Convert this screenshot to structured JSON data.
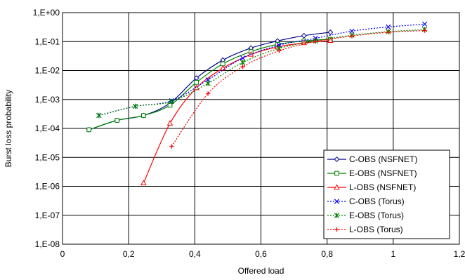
{
  "chart_data": {
    "type": "line",
    "xlabel": "Offered load",
    "ylabel": "Burst loss probability",
    "xlim": [
      0,
      1.2
    ],
    "y_scale": "log",
    "ylim_exponents": [
      -8,
      0
    ],
    "x_ticks": [
      "0",
      "0,2",
      "0,4",
      "0,6",
      "0,8",
      "1",
      "1,2"
    ],
    "y_ticks": [
      "1,E-08",
      "1,E-07",
      "1,E-06",
      "1,E-05",
      "1,E-04",
      "1,E-03",
      "1,E-02",
      "1,E-01",
      "1,E+00"
    ],
    "grid": true,
    "legend_position": "bottom-right",
    "series": [
      {
        "name": "C-OBS (NSFNET)",
        "color": "#00008B",
        "marker": "diamond",
        "dashed": false,
        "points": [
          [
            0.08,
            9e-05
          ],
          [
            0.165,
            0.00019
          ],
          [
            0.245,
            0.00028
          ],
          [
            0.325,
            0.00075
          ],
          [
            0.405,
            0.0055
          ],
          [
            0.485,
            0.023
          ],
          [
            0.57,
            0.06
          ],
          [
            0.65,
            0.105
          ],
          [
            0.73,
            0.16
          ],
          [
            0.81,
            0.21
          ]
        ]
      },
      {
        "name": "E-OBS (NSFNET)",
        "color": "#008000",
        "marker": "square",
        "dashed": false,
        "points": [
          [
            0.08,
            9e-05
          ],
          [
            0.165,
            0.00019
          ],
          [
            0.245,
            0.00028
          ],
          [
            0.325,
            0.00063
          ],
          [
            0.405,
            0.0039
          ],
          [
            0.485,
            0.017
          ],
          [
            0.57,
            0.045
          ],
          [
            0.65,
            0.08
          ],
          [
            0.73,
            0.105
          ],
          [
            0.81,
            0.12
          ]
        ]
      },
      {
        "name": "L-OBS (NSFNET)",
        "color": "#FF0000",
        "marker": "triangle",
        "dashed": false,
        "points": [
          [
            0.245,
            1.3e-06
          ],
          [
            0.325,
            0.00015
          ],
          [
            0.405,
            0.0025
          ],
          [
            0.485,
            0.012
          ],
          [
            0.57,
            0.036
          ],
          [
            0.65,
            0.065
          ],
          [
            0.73,
            0.09
          ],
          [
            0.81,
            0.108
          ]
        ]
      },
      {
        "name": "C-OBS (Torus)",
        "color": "#0000FF",
        "marker": "x",
        "dashed": true,
        "points": [
          [
            0.11,
            0.00028
          ],
          [
            0.22,
            0.00058
          ],
          [
            0.33,
            0.0009
          ],
          [
            0.44,
            0.0048
          ],
          [
            0.545,
            0.027
          ],
          [
            0.655,
            0.075
          ],
          [
            0.765,
            0.13
          ],
          [
            0.875,
            0.23
          ],
          [
            0.985,
            0.32
          ],
          [
            1.095,
            0.4
          ]
        ]
      },
      {
        "name": "E-OBS (Torus)",
        "color": "#008000",
        "marker": "star",
        "dashed": true,
        "points": [
          [
            0.11,
            0.00028
          ],
          [
            0.22,
            0.00058
          ],
          [
            0.33,
            0.00085
          ],
          [
            0.44,
            0.0036
          ],
          [
            0.545,
            0.019
          ],
          [
            0.655,
            0.058
          ],
          [
            0.765,
            0.105
          ],
          [
            0.875,
            0.165
          ],
          [
            0.985,
            0.22
          ],
          [
            1.095,
            0.26
          ]
        ]
      },
      {
        "name": "L-OBS (Torus)",
        "color": "#FF0000",
        "marker": "plus",
        "dashed": true,
        "points": [
          [
            0.33,
            2.4e-05
          ],
          [
            0.44,
            0.0016
          ],
          [
            0.545,
            0.0135
          ],
          [
            0.655,
            0.048
          ],
          [
            0.765,
            0.1
          ],
          [
            0.875,
            0.155
          ],
          [
            0.985,
            0.21
          ],
          [
            1.095,
            0.24
          ]
        ]
      }
    ]
  }
}
